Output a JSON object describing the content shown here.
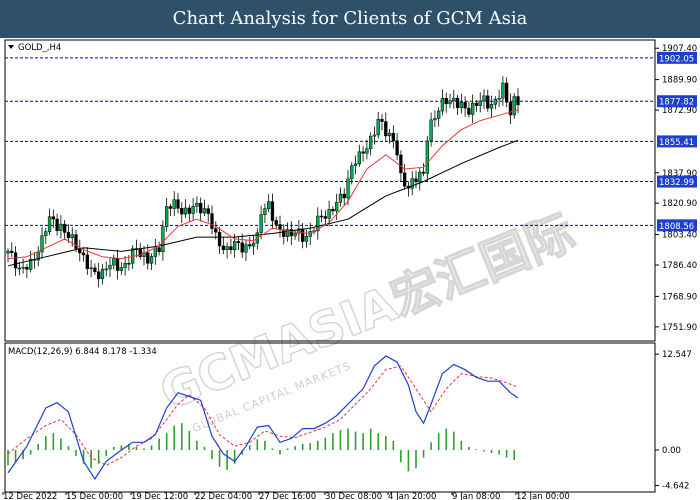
{
  "header": {
    "title": "Chart Analysis for Clients of GCM Asia"
  },
  "colors": {
    "banner_bg": "#2e5069",
    "bull_candle": "#00b050",
    "bear_candle": "#000000",
    "ma_fast": "#e8373e",
    "ma_slow": "#000000",
    "level_line": "#0000cc",
    "level_label_bg": "#1f3fd1",
    "macd_line": "#1f3fd1",
    "signal_line": "#e8373e",
    "histogram": "#2e9e2e"
  },
  "watermark": {
    "text": "GCMASIA宏汇国际",
    "subtext": "GLOBAL CAPITAL MARKETS"
  },
  "chart_data": [
    {
      "type": "candlestick",
      "symbol_label": "GOLD_,H4",
      "ylim": [
        1744,
        1912
      ],
      "y_ticks": [
        "1907.40",
        "1889.90",
        "1872.90",
        "1837.90",
        "1820.90",
        "1803.40",
        "1786.40",
        "1768.90",
        "1751.90"
      ],
      "x_ticks": [
        "12 Dec 2022",
        "15 Dec 00:00",
        "19 Dec 12:00",
        "22 Dec 04:00",
        "27 Dec 16:00",
        "30 Dec 08:00",
        "4 Jan 20:00",
        "9 Jan 08:00",
        "12 Jan 00:00"
      ],
      "levels": [
        {
          "value": 1902.05,
          "label": "1902.05"
        },
        {
          "value": 1877.82,
          "label": "1877.82"
        },
        {
          "value": 1855.41,
          "label": "1855.41"
        },
        {
          "value": 1832.99,
          "label": "1832.99"
        },
        {
          "value": 1808.56,
          "label": "1808.56"
        }
      ],
      "close_path": [
        [
          0,
          1793
        ],
        [
          3,
          1783
        ],
        [
          6,
          1788
        ],
        [
          9,
          1800
        ],
        [
          11,
          1810
        ],
        [
          14,
          1810
        ],
        [
          17,
          1799
        ],
        [
          20,
          1790
        ],
        [
          22,
          1784
        ],
        [
          25,
          1782
        ],
        [
          28,
          1786
        ],
        [
          31,
          1788
        ],
        [
          34,
          1794
        ],
        [
          37,
          1789
        ],
        [
          40,
          1798
        ],
        [
          42,
          1817
        ],
        [
          45,
          1819
        ],
        [
          48,
          1818
        ],
        [
          51,
          1817
        ],
        [
          53,
          1815
        ],
        [
          55,
          1803
        ],
        [
          58,
          1794
        ],
        [
          60,
          1796
        ],
        [
          62,
          1798
        ],
        [
          64,
          1799
        ],
        [
          66,
          1800
        ],
        [
          67,
          1815
        ],
        [
          69,
          1820
        ],
        [
          71,
          1808
        ],
        [
          73,
          1806
        ],
        [
          75,
          1802
        ],
        [
          78,
          1803
        ],
        [
          80,
          1806
        ],
        [
          83,
          1812
        ],
        [
          85,
          1815
        ],
        [
          87,
          1822
        ],
        [
          89,
          1828
        ],
        [
          91,
          1840
        ],
        [
          93,
          1845
        ],
        [
          95,
          1855
        ],
        [
          97,
          1862
        ],
        [
          98,
          1866
        ],
        [
          100,
          1860
        ],
        [
          102,
          1856
        ],
        [
          103,
          1850
        ],
        [
          104,
          1836
        ],
        [
          106,
          1831
        ],
        [
          108,
          1833
        ],
        [
          110,
          1836
        ],
        [
          111,
          1860
        ],
        [
          112,
          1868
        ],
        [
          114,
          1873
        ],
        [
          116,
          1877
        ],
        [
          118,
          1878
        ],
        [
          120,
          1876
        ],
        [
          122,
          1874
        ],
        [
          124,
          1875
        ],
        [
          126,
          1877
        ],
        [
          128,
          1878
        ],
        [
          130,
          1882
        ],
        [
          131,
          1884
        ],
        [
          132,
          1876
        ],
        [
          133,
          1871
        ],
        [
          134,
          1878
        ]
      ],
      "ma_fast": [
        [
          0,
          1790
        ],
        [
          5,
          1791
        ],
        [
          10,
          1796
        ],
        [
          15,
          1801
        ],
        [
          20,
          1795
        ],
        [
          25,
          1791
        ],
        [
          30,
          1790
        ],
        [
          35,
          1792
        ],
        [
          40,
          1797
        ],
        [
          45,
          1808
        ],
        [
          50,
          1812
        ],
        [
          55,
          1808
        ],
        [
          60,
          1801
        ],
        [
          65,
          1800
        ],
        [
          70,
          1807
        ],
        [
          75,
          1805
        ],
        [
          80,
          1804
        ],
        [
          85,
          1810
        ],
        [
          90,
          1822
        ],
        [
          95,
          1840
        ],
        [
          100,
          1848
        ],
        [
          105,
          1840
        ],
        [
          110,
          1841
        ],
        [
          115,
          1853
        ],
        [
          120,
          1862
        ],
        [
          125,
          1867
        ],
        [
          130,
          1870
        ],
        [
          135,
          1873
        ]
      ],
      "ma_slow": [
        [
          0,
          1786
        ],
        [
          10,
          1791
        ],
        [
          20,
          1796
        ],
        [
          30,
          1794
        ],
        [
          40,
          1797
        ],
        [
          50,
          1802
        ],
        [
          60,
          1802
        ],
        [
          70,
          1804
        ],
        [
          80,
          1807
        ],
        [
          90,
          1812
        ],
        [
          100,
          1825
        ],
        [
          110,
          1833
        ],
        [
          120,
          1843
        ],
        [
          130,
          1852
        ],
        [
          135,
          1856
        ]
      ]
    },
    {
      "type": "line",
      "label": "MACD(12,26,9) 6.844 8.178 -1.334",
      "ylim": [
        -5.5,
        14
      ],
      "y_ticks": [
        "12.547",
        "0.00",
        "-4.642"
      ],
      "macd": [
        [
          0,
          -3
        ],
        [
          5,
          0.5
        ],
        [
          10,
          5.5
        ],
        [
          13,
          6.2
        ],
        [
          16,
          5
        ],
        [
          20,
          -1.5
        ],
        [
          23,
          -3.8
        ],
        [
          26,
          -1.5
        ],
        [
          30,
          0
        ],
        [
          33,
          1
        ],
        [
          36,
          1
        ],
        [
          39,
          2
        ],
        [
          42,
          5.5
        ],
        [
          45,
          7.5
        ],
        [
          48,
          7
        ],
        [
          51,
          6.5
        ],
        [
          54,
          1.8
        ],
        [
          57,
          -0.5
        ],
        [
          60,
          -1.5
        ],
        [
          63,
          0.5
        ],
        [
          66,
          3
        ],
        [
          69,
          3.2
        ],
        [
          72,
          1
        ],
        [
          75,
          1.5
        ],
        [
          78,
          2.8
        ],
        [
          81,
          2.8
        ],
        [
          84,
          3.5
        ],
        [
          87,
          4.5
        ],
        [
          90,
          6
        ],
        [
          94,
          8
        ],
        [
          97,
          11
        ],
        [
          100,
          12.3
        ],
        [
          103,
          11.5
        ],
        [
          106,
          8.5
        ],
        [
          108,
          5
        ],
        [
          110,
          3.5
        ],
        [
          112,
          6
        ],
        [
          115,
          10
        ],
        [
          118,
          11.2
        ],
        [
          121,
          10.5
        ],
        [
          124,
          9.5
        ],
        [
          127,
          9
        ],
        [
          130,
          9
        ],
        [
          133,
          7.5
        ],
        [
          135,
          6.8
        ]
      ],
      "signal": [
        [
          0,
          -0.5
        ],
        [
          5,
          1.5
        ],
        [
          10,
          3.2
        ],
        [
          14,
          4
        ],
        [
          18,
          2
        ],
        [
          22,
          -1
        ],
        [
          26,
          -2
        ],
        [
          30,
          -1
        ],
        [
          34,
          0.5
        ],
        [
          38,
          1.5
        ],
        [
          42,
          4
        ],
        [
          45,
          6
        ],
        [
          48,
          7.2
        ],
        [
          52,
          5.5
        ],
        [
          56,
          2
        ],
        [
          60,
          0.5
        ],
        [
          64,
          1
        ],
        [
          68,
          2.5
        ],
        [
          72,
          1.8
        ],
        [
          76,
          1.6
        ],
        [
          80,
          2.3
        ],
        [
          84,
          3
        ],
        [
          88,
          4
        ],
        [
          92,
          6
        ],
        [
          96,
          8
        ],
        [
          100,
          10.5
        ],
        [
          104,
          11
        ],
        [
          108,
          8
        ],
        [
          112,
          5
        ],
        [
          116,
          8
        ],
        [
          120,
          10
        ],
        [
          124,
          9.6
        ],
        [
          128,
          9.4
        ],
        [
          132,
          8.8
        ],
        [
          135,
          8.2
        ]
      ],
      "histogram": [
        [
          0,
          -2
        ],
        [
          2,
          -1.6
        ],
        [
          4,
          -1.2
        ],
        [
          6,
          -0.6
        ],
        [
          8,
          0.8
        ],
        [
          10,
          1.8
        ],
        [
          12,
          2.2
        ],
        [
          14,
          1.5
        ],
        [
          16,
          0.5
        ],
        [
          18,
          -0.8
        ],
        [
          20,
          -1.8
        ],
        [
          22,
          -2.4
        ],
        [
          24,
          -1.8
        ],
        [
          26,
          -0.8
        ],
        [
          28,
          0.4
        ],
        [
          30,
          0.6
        ],
        [
          32,
          0.8
        ],
        [
          34,
          0.4
        ],
        [
          36,
          0.2
        ],
        [
          38,
          0.6
        ],
        [
          40,
          1.5
        ],
        [
          42,
          2.2
        ],
        [
          44,
          3.2
        ],
        [
          46,
          3.5
        ],
        [
          48,
          2.5
        ],
        [
          50,
          1.2
        ],
        [
          52,
          0.4
        ],
        [
          54,
          -1.2
        ],
        [
          56,
          -2.2
        ],
        [
          58,
          -2.6
        ],
        [
          60,
          -1.8
        ],
        [
          62,
          -0.6
        ],
        [
          64,
          0.6
        ],
        [
          66,
          1.4
        ],
        [
          68,
          1.2
        ],
        [
          70,
          0.2
        ],
        [
          72,
          -0.6
        ],
        [
          74,
          0.2
        ],
        [
          76,
          0.5
        ],
        [
          78,
          0.8
        ],
        [
          80,
          0.9
        ],
        [
          82,
          1.2
        ],
        [
          84,
          1.6
        ],
        [
          86,
          2.2
        ],
        [
          88,
          2.6
        ],
        [
          90,
          2.8
        ],
        [
          92,
          2.4
        ],
        [
          94,
          2.2
        ],
        [
          96,
          2.8
        ],
        [
          98,
          2.2
        ],
        [
          100,
          1.8
        ],
        [
          102,
          1.2
        ],
        [
          104,
          -1.6
        ],
        [
          106,
          -2.8
        ],
        [
          108,
          -2.4
        ],
        [
          110,
          -1.0
        ],
        [
          112,
          1.0
        ],
        [
          114,
          2.2
        ],
        [
          116,
          2.8
        ],
        [
          118,
          2.4
        ],
        [
          120,
          1.2
        ],
        [
          122,
          0.4
        ],
        [
          124,
          0.1
        ],
        [
          126,
          -0.2
        ],
        [
          128,
          -0.4
        ],
        [
          130,
          -0.6
        ],
        [
          132,
          -1.0
        ],
        [
          134,
          -1.3
        ]
      ]
    }
  ]
}
